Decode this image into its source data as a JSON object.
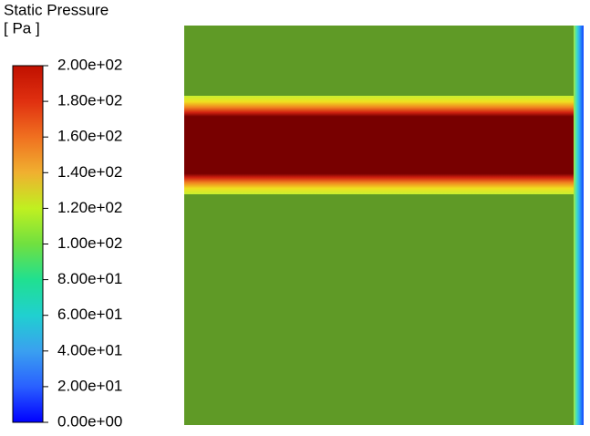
{
  "chart_data": {
    "type": "contour",
    "title": "Static Pressure",
    "subtitle": "[ Pa ]",
    "zlim": [
      0,
      200
    ],
    "zticks": [
      {
        "value": 200,
        "label": "2.00e+02"
      },
      {
        "value": 180,
        "label": "1.80e+02"
      },
      {
        "value": 160,
        "label": "1.60e+02"
      },
      {
        "value": 140,
        "label": "1.40e+02"
      },
      {
        "value": 120,
        "label": "1.20e+02"
      },
      {
        "value": 100,
        "label": "1.00e+02"
      },
      {
        "value": 80,
        "label": "8.00e+01"
      },
      {
        "value": 60,
        "label": "6.00e+01"
      },
      {
        "value": 40,
        "label": "4.00e+01"
      },
      {
        "value": 20,
        "label": "2.00e+01"
      },
      {
        "value": 0,
        "label": "0.00e+00"
      }
    ],
    "colormap": [
      "#0000ff",
      "#2a60ff",
      "#3aa0f0",
      "#20d0d0",
      "#20e090",
      "#70e040",
      "#c0f020",
      "#f0b030",
      "#f07020",
      "#e03010",
      "#c01000"
    ]
  }
}
